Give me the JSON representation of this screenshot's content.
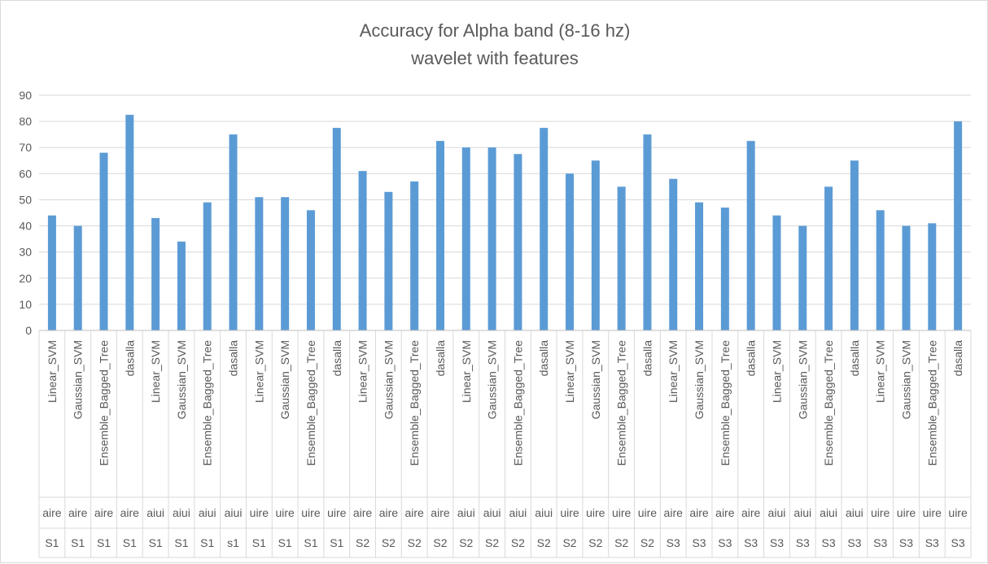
{
  "chart_data": {
    "type": "bar",
    "title": "Accuracy for Alpha band (8-16 hz)",
    "subtitle": "wavelet with features",
    "xlabel": "",
    "ylabel": "",
    "ylim": [
      0,
      90
    ],
    "yticks": [
      0,
      10,
      20,
      30,
      40,
      50,
      60,
      70,
      80,
      90
    ],
    "grid": true,
    "legend": "none",
    "bar_color": "#5b9bd5",
    "categories": [
      {
        "level1": "Linear_SVM",
        "level2": "aire",
        "level3": "S1"
      },
      {
        "level1": "Gaussian_SVM",
        "level2": "aire",
        "level3": "S1"
      },
      {
        "level1": "Ensemble_Bagged_Tree",
        "level2": "aire",
        "level3": "S1"
      },
      {
        "level1": "dasalla",
        "level2": "aire",
        "level3": "S1"
      },
      {
        "level1": "Linear_SVM",
        "level2": "aiui",
        "level3": "S1"
      },
      {
        "level1": "Gaussian_SVM",
        "level2": "aiui",
        "level3": "S1"
      },
      {
        "level1": "Ensemble_Bagged_Tree",
        "level2": "aiui",
        "level3": "S1"
      },
      {
        "level1": "dasalla",
        "level2": "aiui",
        "level3": "s1"
      },
      {
        "level1": "Linear_SVM",
        "level2": "uire",
        "level3": "S1"
      },
      {
        "level1": "Gaussian_SVM",
        "level2": "uire",
        "level3": "S1"
      },
      {
        "level1": "Ensemble_Bagged_Tree",
        "level2": "uire",
        "level3": "S1"
      },
      {
        "level1": "dasalla",
        "level2": "uire",
        "level3": "S1"
      },
      {
        "level1": "Linear_SVM",
        "level2": "aire",
        "level3": "S2"
      },
      {
        "level1": "Gaussian_SVM",
        "level2": "aire",
        "level3": "S2"
      },
      {
        "level1": "Ensemble_Bagged_Tree",
        "level2": "aire",
        "level3": "S2"
      },
      {
        "level1": "dasalla",
        "level2": "aire",
        "level3": "S2"
      },
      {
        "level1": "Linear_SVM",
        "level2": "aiui",
        "level3": "S2"
      },
      {
        "level1": "Gaussian_SVM",
        "level2": "aiui",
        "level3": "S2"
      },
      {
        "level1": "Ensemble_Bagged_Tree",
        "level2": "aiui",
        "level3": "S2"
      },
      {
        "level1": "dasalla",
        "level2": "aiui",
        "level3": "S2"
      },
      {
        "level1": "Linear_SVM",
        "level2": "uire",
        "level3": "S2"
      },
      {
        "level1": "Gaussian_SVM",
        "level2": "uire",
        "level3": "S2"
      },
      {
        "level1": "Ensemble_Bagged_Tree",
        "level2": "uire",
        "level3": "S2"
      },
      {
        "level1": "dasalla",
        "level2": "uire",
        "level3": "S2"
      },
      {
        "level1": "Linear_SVM",
        "level2": "aire",
        "level3": "S3"
      },
      {
        "level1": "Gaussian_SVM",
        "level2": "aire",
        "level3": "S3"
      },
      {
        "level1": "Ensemble_Bagged_Tree",
        "level2": "aire",
        "level3": "S3"
      },
      {
        "level1": "dasalla",
        "level2": "aire",
        "level3": "S3"
      },
      {
        "level1": "Linear_SVM",
        "level2": "aiui",
        "level3": "S3"
      },
      {
        "level1": "Gaussian_SVM",
        "level2": "aiui",
        "level3": "S3"
      },
      {
        "level1": "Ensemble_Bagged_Tree",
        "level2": "aiui",
        "level3": "S3"
      },
      {
        "level1": "dasalla",
        "level2": "aiui",
        "level3": "S3"
      },
      {
        "level1": "Linear_SVM",
        "level2": "uire",
        "level3": "S3"
      },
      {
        "level1": "Gaussian_SVM",
        "level2": "uire",
        "level3": "S3"
      },
      {
        "level1": "Ensemble_Bagged_Tree",
        "level2": "uire",
        "level3": "S3"
      },
      {
        "level1": "dasalla",
        "level2": "uire",
        "level3": "S3"
      }
    ],
    "values": [
      44,
      40,
      68,
      82.5,
      43,
      34,
      49,
      75,
      51,
      51,
      46,
      77.5,
      61,
      53,
      57,
      72.5,
      70,
      70,
      67.5,
      77.5,
      60,
      65,
      55,
      75,
      58,
      49,
      47,
      72.5,
      44,
      40,
      55,
      65,
      46,
      40,
      41,
      80
    ]
  }
}
